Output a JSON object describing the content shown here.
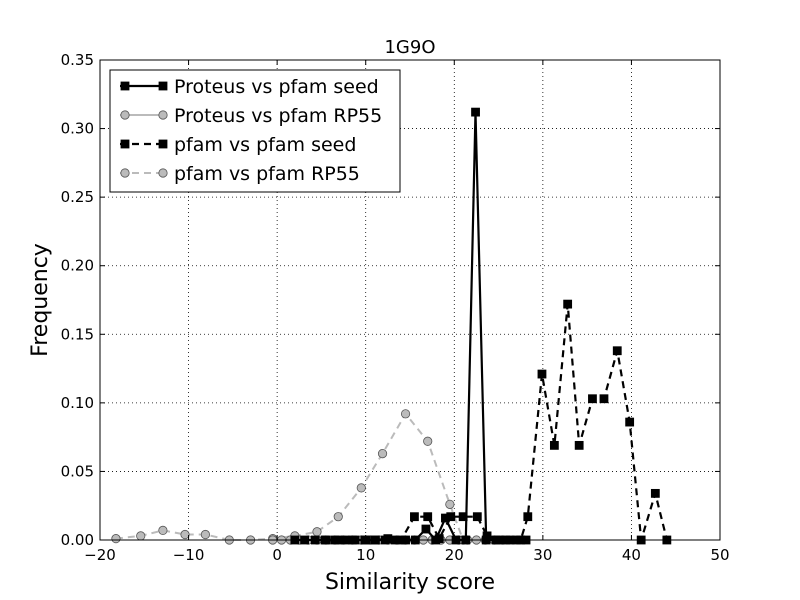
{
  "chart_data": {
    "type": "line",
    "title": "1G9O",
    "xlabel": "Similarity score",
    "ylabel": "Frequency",
    "xlim": [
      -20,
      50
    ],
    "ylim": [
      0,
      0.35
    ],
    "xticks": [
      -20,
      -10,
      0,
      10,
      20,
      30,
      40,
      50
    ],
    "xtick_labels": [
      "−20",
      "−10",
      "0",
      "10",
      "20",
      "30",
      "40",
      "50"
    ],
    "yticks": [
      0,
      0.05,
      0.1,
      0.15,
      0.2,
      0.25,
      0.3,
      0.35
    ],
    "ytick_labels": [
      "0.00",
      "0.05",
      "0.10",
      "0.15",
      "0.20",
      "0.25",
      "0.30",
      "0.35"
    ],
    "grid": true,
    "legend_position": "top-left",
    "series": [
      {
        "name": "Proteus vs pfam seed",
        "color": "#000000",
        "line_style": "solid",
        "marker": "square",
        "x": [
          2.0,
          3.1,
          4.3,
          5.4,
          6.5,
          7.7,
          8.8,
          9.9,
          11.1,
          12.2,
          13.3,
          14.5,
          15.6,
          16.8,
          17.9,
          19.0,
          20.2,
          21.3,
          22.4,
          23.6,
          24.7,
          25.8,
          27.0,
          28.1
        ],
        "y": [
          0.0,
          0.0,
          0.0,
          0.0,
          0.0,
          0.0,
          0.0,
          0.0,
          0.0,
          0.0,
          0.0,
          0.0,
          0.0,
          0.008,
          0.0,
          0.016,
          0.0,
          0.0,
          0.312,
          0.0,
          0.0,
          0.0,
          0.0,
          0.0
        ]
      },
      {
        "name": "Proteus vs pfam RP55",
        "color": "#bbbbbb",
        "line_style": "solid",
        "marker": "circle",
        "x": [
          -0.5,
          0.5,
          1.5,
          2.5,
          3.5,
          4.5,
          5.5,
          6.5,
          7.5,
          8.5,
          9.5,
          10.5,
          11.5,
          12.5,
          13.5,
          14.5,
          15.5,
          16.5,
          17.5,
          18.5,
          19.5,
          20.5,
          21.5,
          22.5,
          23.5,
          24.5,
          25.5
        ],
        "y": [
          0.0,
          0.0,
          0.0,
          0.0,
          0.0,
          0.0,
          0.0,
          0.0,
          0.0,
          0.0,
          0.0,
          0.0,
          0.0,
          0.0,
          0.0,
          0.0,
          0.0,
          0.0,
          0.0,
          0.0,
          0.0,
          0.0,
          0.0,
          0.0,
          0.0,
          0.0,
          0.0
        ]
      },
      {
        "name": "pfam vs pfam seed",
        "color": "#000000",
        "line_style": "dashed",
        "marker": "square",
        "x": [
          5.5,
          7.0,
          8.5,
          10.0,
          11.0,
          12.5,
          14.0,
          15.5,
          17.0,
          18.3,
          19.6,
          21.0,
          22.6,
          23.7,
          25.0,
          26.3,
          27.5,
          28.3,
          29.9,
          31.3,
          32.8,
          34.1,
          35.6,
          36.9,
          38.4,
          39.8,
          41.1,
          42.7,
          44.0
        ],
        "y": [
          0.0,
          0.0,
          0.0,
          0.0,
          0.0,
          0.001,
          0.0,
          0.017,
          0.017,
          0.001,
          0.017,
          0.017,
          0.017,
          0.003,
          0.0,
          0.0,
          0.0,
          0.017,
          0.121,
          0.069,
          0.172,
          0.069,
          0.103,
          0.103,
          0.138,
          0.086,
          0.0,
          0.034,
          0.0
        ]
      },
      {
        "name": "pfam vs pfam RP55",
        "color": "#bbbbbb",
        "line_style": "dashed",
        "marker": "circle",
        "x": [
          -18.2,
          -15.4,
          -12.9,
          -10.4,
          -8.1,
          -5.4,
          -3.0,
          -0.5,
          2.0,
          4.5,
          6.9,
          9.5,
          11.9,
          14.5,
          17.0,
          19.5,
          21.0
        ],
        "y": [
          0.001,
          0.003,
          0.007,
          0.004,
          0.004,
          0.0,
          0.0,
          0.001,
          0.003,
          0.006,
          0.017,
          0.038,
          0.063,
          0.092,
          0.072,
          0.026,
          0.0
        ]
      }
    ]
  }
}
